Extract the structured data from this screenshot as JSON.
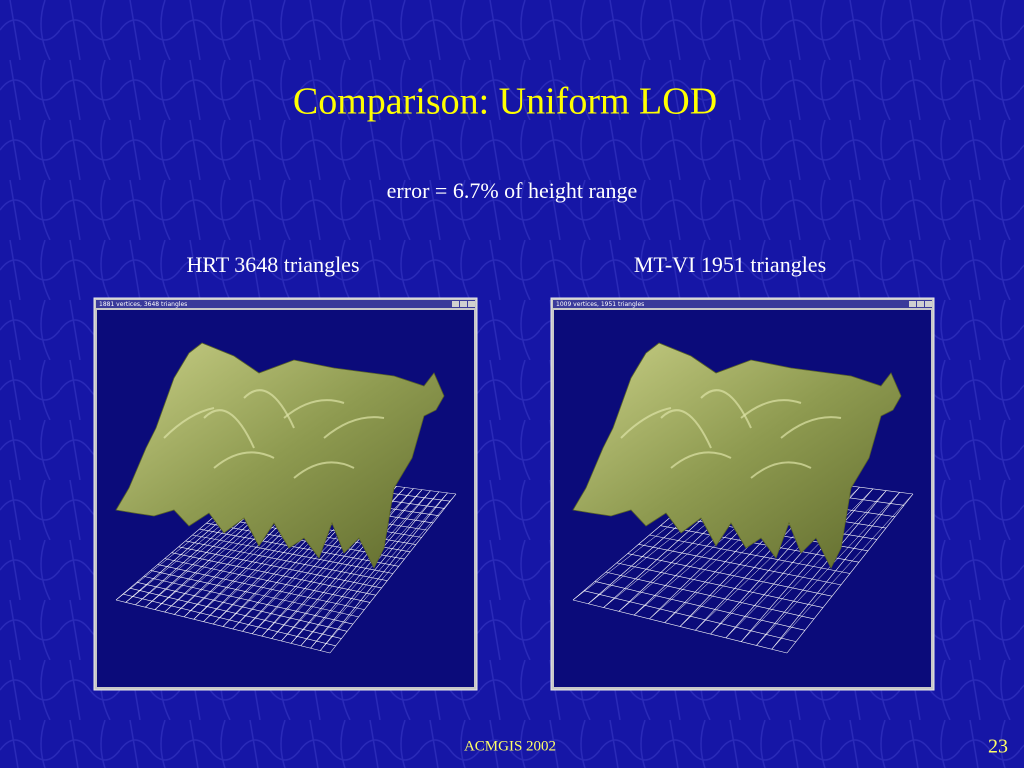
{
  "slide": {
    "title": "Comparison: Uniform LOD",
    "subtitle": "error = 6.7% of height range",
    "panels": [
      {
        "label": "HRT 3648 triangles",
        "window_title": "1881 vertices, 3648 triangles"
      },
      {
        "label": "MT-VI 1951 triangles",
        "window_title": "1009 vertices, 1951 triangles"
      }
    ],
    "footer": "ACMGIS 2002",
    "page_number": "23"
  }
}
